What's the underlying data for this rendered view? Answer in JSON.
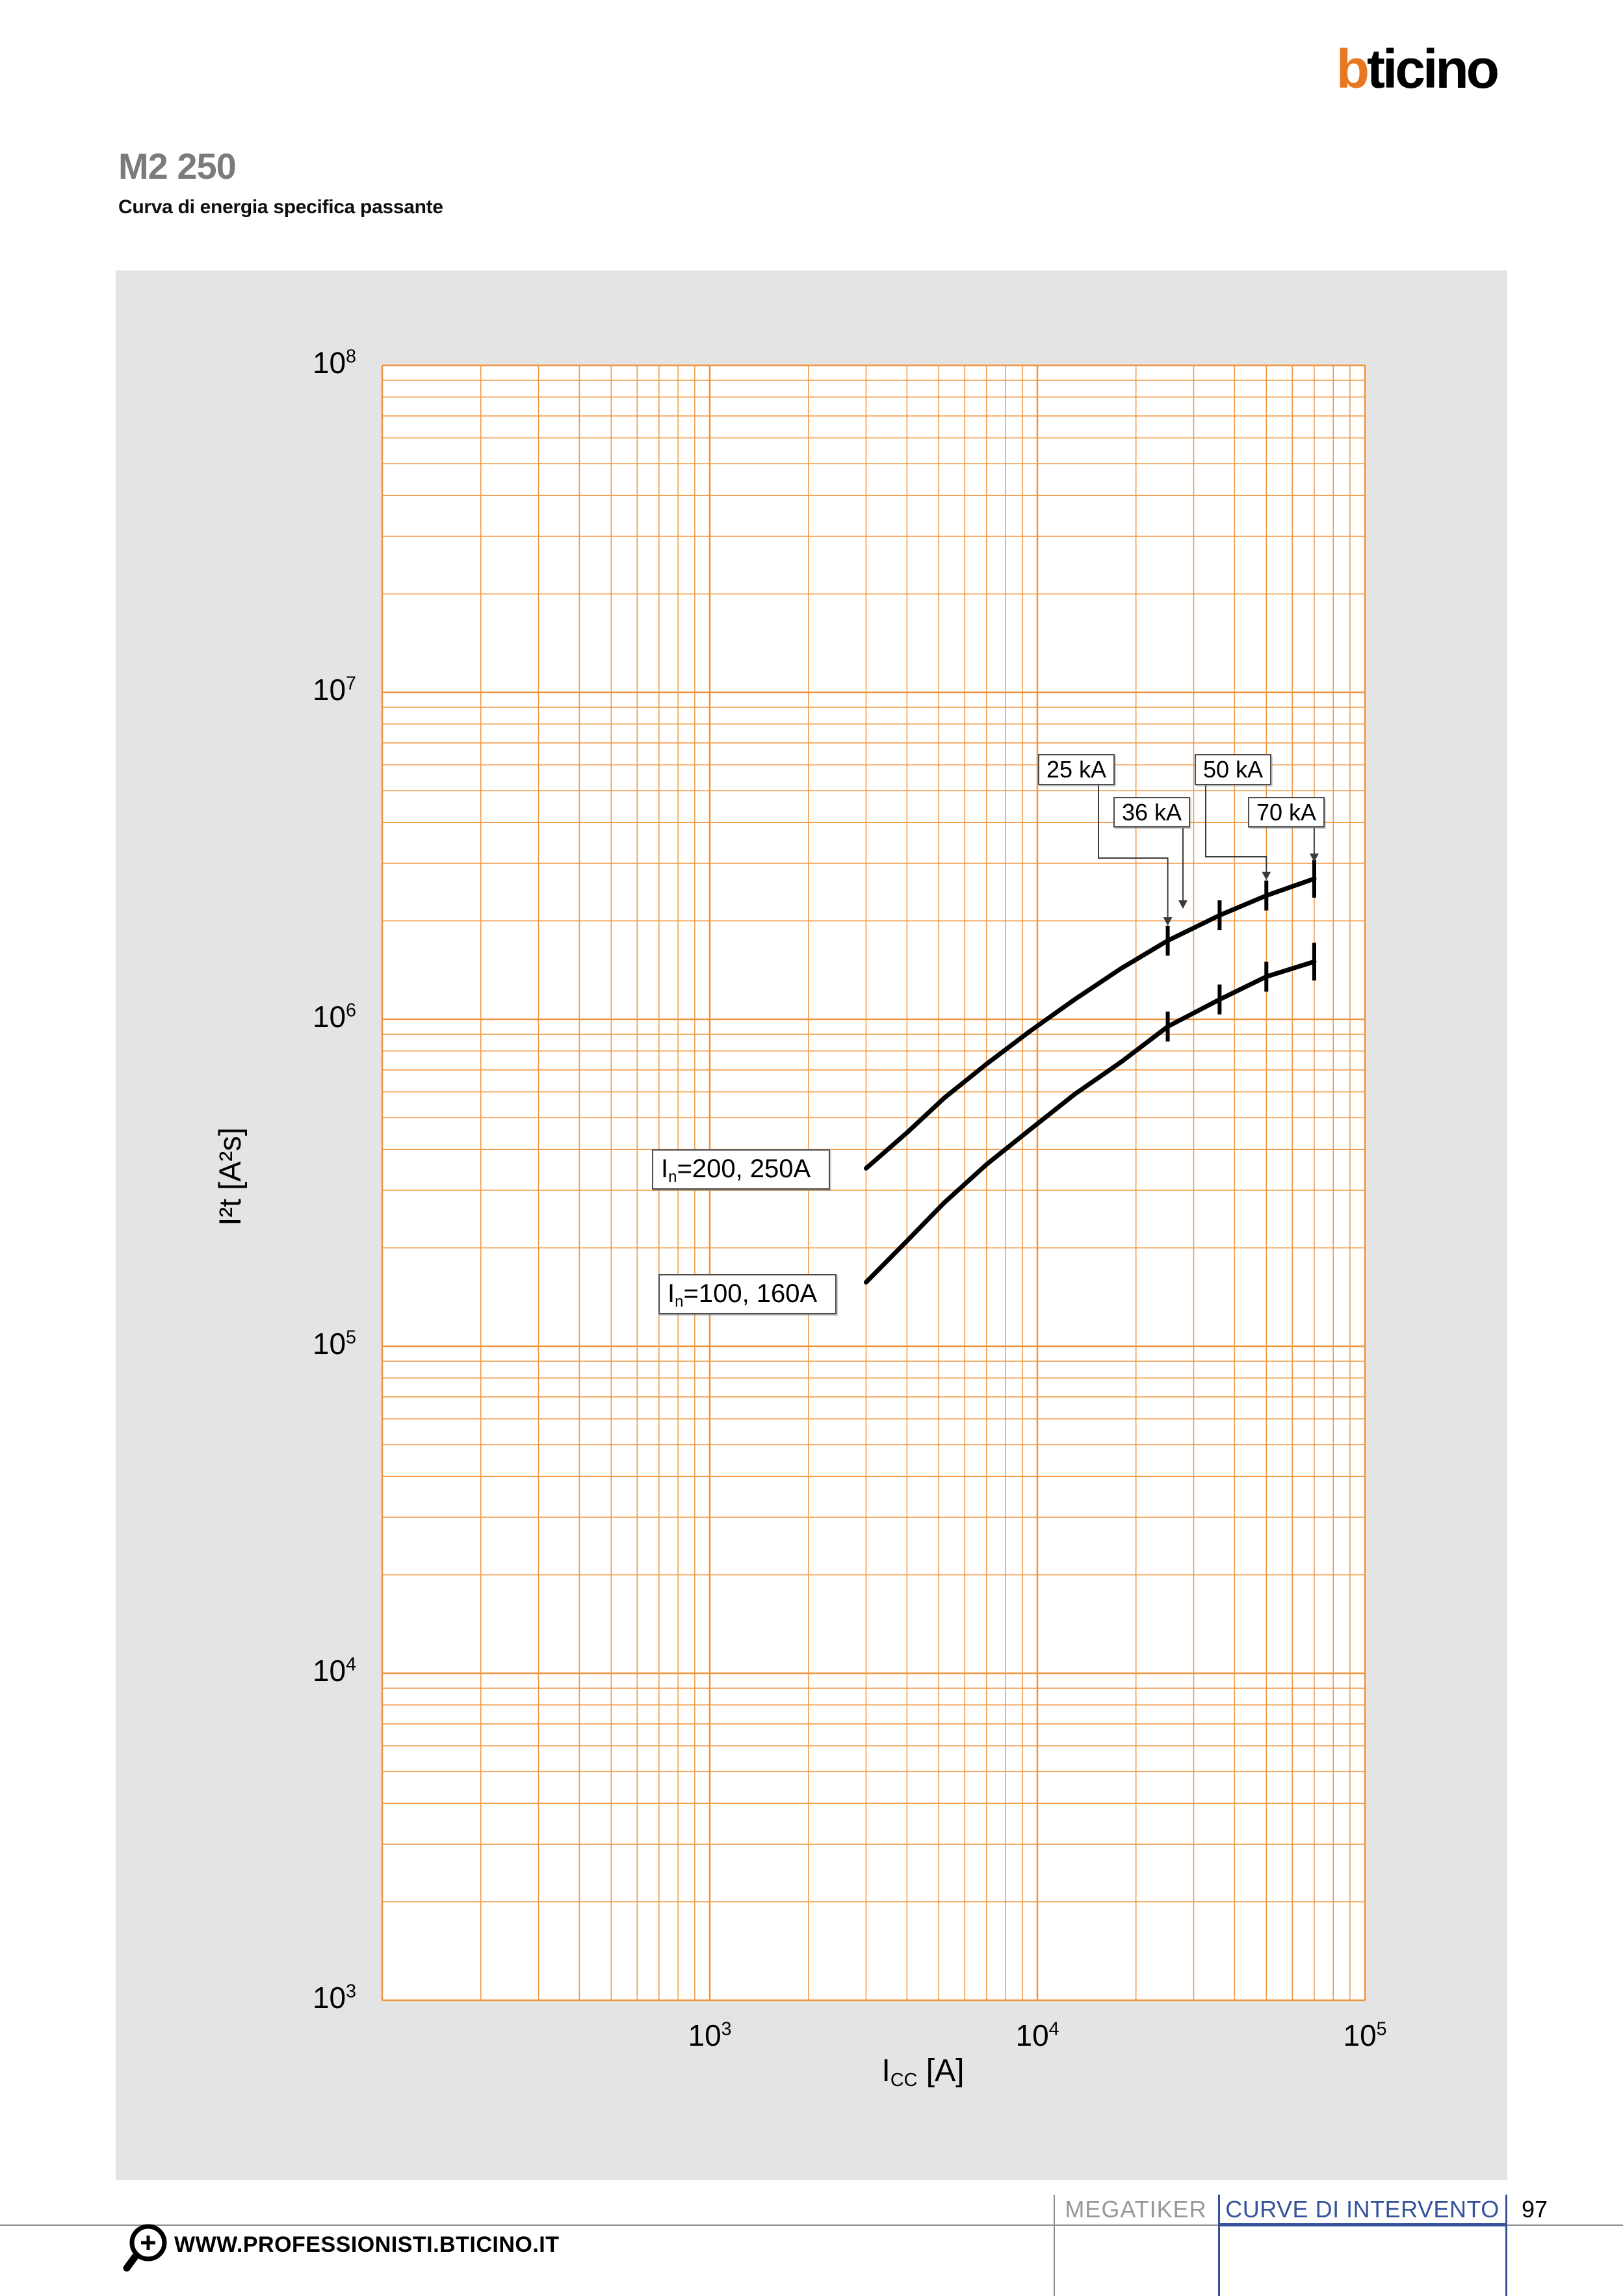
{
  "page": {
    "logo": {
      "b": "b",
      "rest": "ticino"
    },
    "title": "M2 250",
    "subtitle": "Curva di energia specifica passante",
    "footer": {
      "section": "MEGATIKER",
      "chapter": "CURVE DI INTERVENTO",
      "page_number": "97",
      "website": "WWW.PROFESSIONISTI.BTICINO.IT"
    },
    "colors": {
      "logo_orange": "#E87722",
      "panel_gray": "#E4E4E4",
      "footer_blue": "#35539B",
      "footer_gray": "#8C8C8C"
    }
  },
  "chart_data": {
    "type": "line",
    "title": "Curva di energia specifica passante",
    "x_axis": {
      "scale": "log",
      "range_exponents": [
        2,
        5
      ],
      "tick_exponents": [
        3,
        4,
        5
      ],
      "tick_base": "10",
      "title_parts": {
        "pre": "I",
        "sub": "CC",
        "post": " [A]"
      }
    },
    "y_axis": {
      "scale": "log",
      "range_exponents": [
        3,
        8
      ],
      "tick_exponents": [
        8,
        7,
        6,
        5,
        4,
        3
      ],
      "tick_base": "10",
      "title": "I²t [A²s]"
    },
    "grid": "on",
    "grid_color": "#F0953F",
    "curve_color": "#000000",
    "series": [
      {
        "name_parts": {
          "pre": "I",
          "sub": "n",
          "post": "=200, 250A"
        },
        "x": [
          3000,
          4000,
          5200,
          7000,
          9500,
          13000,
          18000,
          25000,
          36000,
          50000,
          70000
        ],
        "y": [
          350000,
          450000,
          575000,
          730000,
          920000,
          1150000,
          1430000,
          1740000,
          2080000,
          2390000,
          2690000
        ]
      },
      {
        "name_parts": {
          "pre": "I",
          "sub": "n",
          "post": "=100, 160A"
        },
        "x": [
          3000,
          4000,
          5200,
          7000,
          9500,
          13000,
          18000,
          25000,
          36000,
          50000,
          70000
        ],
        "y": [
          157000,
          210000,
          275000,
          360000,
          460000,
          590000,
          740000,
          950000,
          1150000,
          1350000,
          1500000
        ]
      }
    ],
    "breaking_capacity_annotations": [
      {
        "label": "25 kA",
        "amps": 25000
      },
      {
        "label": "36 kA",
        "amps": 36000
      },
      {
        "label": "50 kA",
        "amps": 50000
      },
      {
        "label": "70 kA",
        "amps": 70000
      }
    ]
  }
}
